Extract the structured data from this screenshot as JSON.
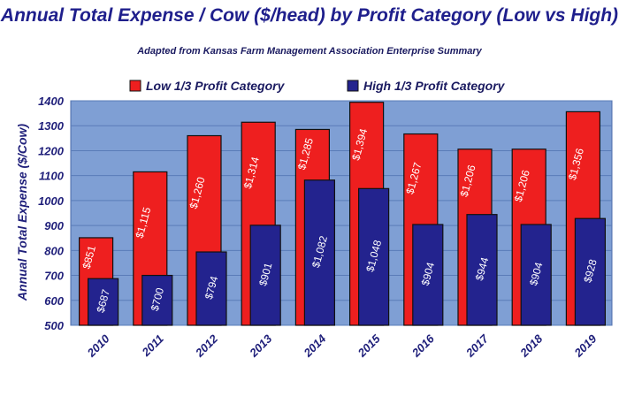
{
  "chart_data": {
    "type": "bar",
    "title": "Annual Total Expense / Cow ($/head) by Profit Category (Low vs High)",
    "subtitle": "Adapted from Kansas Farm Management Association Enterprise Summary",
    "ylabel": "Annual Total Expense ($/Cow)",
    "xlabel": "",
    "ylim": [
      500,
      1400
    ],
    "yticks": [
      "500",
      "600",
      "700",
      "800",
      "900",
      "1000",
      "1100",
      "1200",
      "1300",
      "1400"
    ],
    "grid": true,
    "legend": "top",
    "categories": [
      "2010",
      "2011",
      "2012",
      "2013",
      "2014",
      "2015",
      "2016",
      "2017",
      "2018",
      "2019"
    ],
    "series": [
      {
        "name": "Low 1/3 Profit Category",
        "color": "#ee1f1f",
        "values": [
          851,
          1115,
          1260,
          1314,
          1285,
          1394,
          1267,
          1206,
          1206,
          1356
        ],
        "labels": [
          "$851",
          "$1,115",
          "$1,260",
          "$1,314",
          "$1,285",
          "$1,394",
          "$1,267",
          "$1,206",
          "$1,206",
          "$1,356"
        ]
      },
      {
        "name": "High 1/3 Profit Category",
        "color": "#23238e",
        "values": [
          687,
          700,
          794,
          901,
          1082,
          1048,
          904,
          944,
          904,
          928
        ],
        "labels": [
          "$687",
          "$700",
          "$794",
          "$901",
          "$1,082",
          "$1,048",
          "$904",
          "$944",
          "$904",
          "$928"
        ]
      }
    ],
    "plot_background": "#7f9fd4",
    "grid_color": "#5a7cb8"
  }
}
